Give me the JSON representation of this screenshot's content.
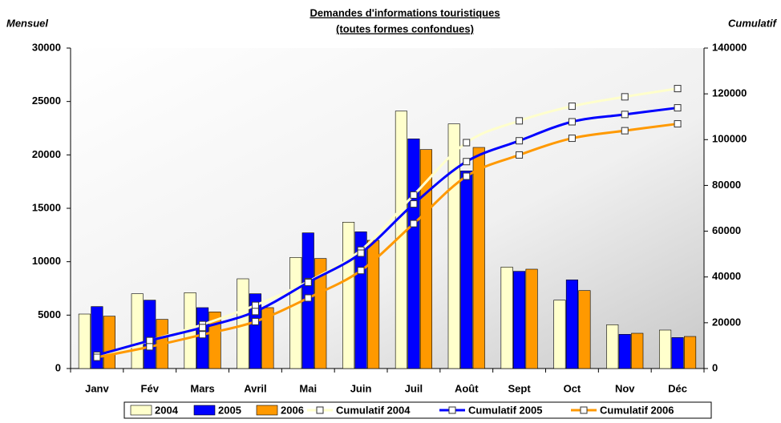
{
  "chart_data": {
    "type": "bar",
    "title": "Demandes d'informations touristiques",
    "subtitle": "(toutes formes confondues)",
    "y_label": "Mensuel",
    "y2_label": "Cumulatif",
    "categories": [
      "Janv",
      "Fév",
      "Mars",
      "Avril",
      "Mai",
      "Juin",
      "Juil",
      "Août",
      "Sept",
      "Oct",
      "Nov",
      "Déc"
    ],
    "series": [
      {
        "name": "2004",
        "type": "bar",
        "color": "#ffffcc",
        "values": [
          5100,
          7000,
          7100,
          8400,
          10400,
          13700,
          24100,
          22900,
          9500,
          6400,
          4100,
          3600
        ]
      },
      {
        "name": "2005",
        "type": "bar",
        "color": "#0000ff",
        "values": [
          5800,
          6400,
          5700,
          7000,
          12700,
          12800,
          21500,
          18500,
          9100,
          8300,
          3200,
          2900
        ]
      },
      {
        "name": "2006",
        "type": "bar",
        "color": "#ff9900",
        "values": [
          4900,
          4600,
          5300,
          5700,
          10300,
          12000,
          20500,
          20700,
          9300,
          7300,
          3300,
          3000
        ]
      },
      {
        "name": "Cumulatif 2004",
        "type": "line",
        "axis": "y2",
        "color": "#ffffcc",
        "values": [
          5100,
          12100,
          19200,
          27600,
          38000,
          51700,
          75800,
          98700,
          108200,
          114600,
          118700,
          122300
        ]
      },
      {
        "name": "Cumulatif 2005",
        "type": "line",
        "axis": "y2",
        "color": "#0000ff",
        "values": [
          5800,
          12200,
          17900,
          24900,
          37600,
          50400,
          71900,
          90400,
          99500,
          107800,
          111000,
          113900
        ]
      },
      {
        "name": "Cumulatif 2006",
        "type": "line",
        "axis": "y2",
        "color": "#ff9900",
        "values": [
          4900,
          9500,
          14800,
          20500,
          30800,
          42800,
          63300,
          84000,
          93300,
          100600,
          103900,
          106900
        ]
      }
    ],
    "ylim": [
      0,
      30000
    ],
    "yticks": [
      0,
      5000,
      10000,
      15000,
      20000,
      25000,
      30000
    ],
    "y2lim": [
      0,
      140000
    ],
    "y2ticks": [
      0,
      20000,
      40000,
      60000,
      80000,
      100000,
      120000,
      140000
    ]
  }
}
